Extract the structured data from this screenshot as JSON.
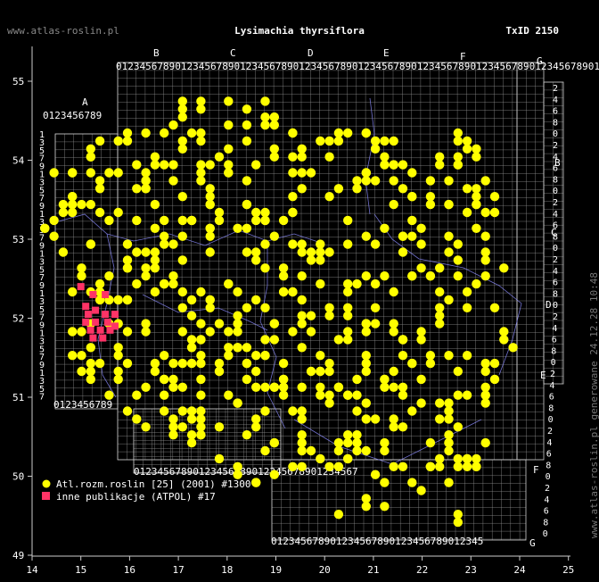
{
  "header": {
    "site": "www.atlas-roslin.pl",
    "title": "Lysimachia thyrsiflora",
    "taxid": "TxID 2150"
  },
  "side_text": "www.atlas-roslin.pl generowane 24.12.28 10:48",
  "axes": {
    "lon_ticks": [
      "14",
      "15",
      "16",
      "17",
      "18",
      "19",
      "20",
      "21",
      "22",
      "23",
      "24",
      "25"
    ],
    "lat_ticks": [
      "49",
      "50",
      "51",
      "52",
      "53",
      "54",
      "55"
    ]
  },
  "grid_letters": {
    "top": [
      "A",
      "B",
      "C",
      "D",
      "E",
      "F",
      "G"
    ],
    "right": [
      "B",
      "C",
      "D",
      "E",
      "F",
      "G"
    ]
  },
  "grid_digits": "0123456789",
  "legend": {
    "items": [
      {
        "label": "Atl.rozm.roslin [25] (2001) #1300",
        "color": "#ffff00",
        "shape": "circle"
      },
      {
        "label": "inne publikacje (ATPOL) #17",
        "color": "#ff3366",
        "shape": "square"
      }
    ]
  },
  "colors": {
    "background": "#000000",
    "grid": "#9a9a9a",
    "rivers": "#8c8cff",
    "records_main": "#ffff00",
    "records_other": "#ff3366",
    "text": "#ffffff"
  },
  "chart_data": {
    "type": "scatter",
    "xlabel": "",
    "ylabel": "",
    "xlim": [
      14,
      25
    ],
    "ylim": [
      49,
      55.5
    ],
    "series": [
      {
        "name": "Atl.rozm.roslin [25] (2001) #1300",
        "density": "dense",
        "count_shown": 1300
      },
      {
        "name": "inne publikacje (ATPOL) #17",
        "count_shown": 17,
        "points": [
          [
            15.0,
            52.4
          ],
          [
            15.25,
            52.3
          ],
          [
            15.5,
            52.3
          ],
          [
            15.1,
            52.15
          ],
          [
            15.3,
            52.1
          ],
          [
            15.5,
            52.05
          ],
          [
            15.7,
            52.05
          ],
          [
            15.1,
            51.95
          ],
          [
            15.3,
            51.95
          ],
          [
            15.55,
            51.95
          ],
          [
            15.2,
            51.85
          ],
          [
            15.4,
            51.85
          ],
          [
            15.6,
            51.85
          ],
          [
            15.25,
            51.75
          ],
          [
            15.45,
            51.75
          ],
          [
            15.7,
            51.9
          ],
          [
            15.15,
            52.05
          ]
        ]
      }
    ]
  }
}
